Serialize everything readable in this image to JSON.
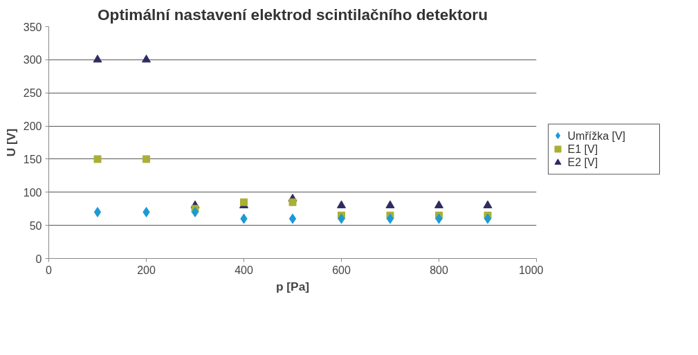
{
  "chart_data": {
    "type": "scatter",
    "title": "Optimální nastavení elektrod scintilačního detektoru",
    "xlabel": "p [Pa]",
    "ylabel": "U [V]",
    "x": [
      100,
      200,
      300,
      400,
      500,
      600,
      700,
      800,
      900
    ],
    "series": [
      {
        "name": "Umřížka [V]",
        "color": "#1b9ad6",
        "marker": "diamond",
        "values": [
          70,
          70,
          70,
          60,
          60,
          60,
          60,
          60,
          60
        ]
      },
      {
        "name": "E1 [V]",
        "color": "#a9b035",
        "marker": "square",
        "values": [
          150,
          150,
          75,
          85,
          85,
          65,
          65,
          65,
          65
        ]
      },
      {
        "name": "E2 [V]",
        "color": "#2e2c5e",
        "marker": "triangle",
        "values": [
          300,
          300,
          80,
          80,
          90,
          80,
          80,
          80,
          80
        ]
      }
    ],
    "xlim": [
      0,
      1000
    ],
    "xticks": [
      0,
      200,
      400,
      600,
      800,
      1000
    ],
    "ylim": [
      0,
      350
    ],
    "yticks": [
      0,
      50,
      100,
      150,
      200,
      250,
      300,
      350
    ],
    "grid": "y",
    "legend": "right"
  }
}
